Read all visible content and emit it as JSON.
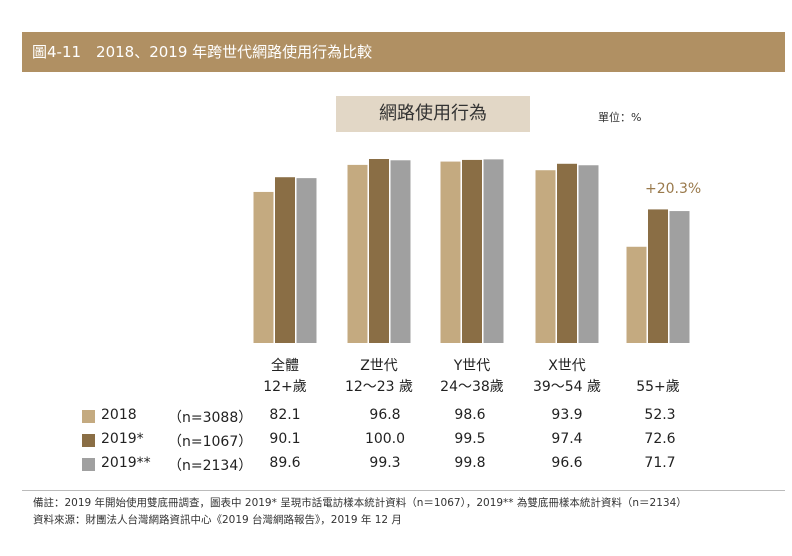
{
  "header": {
    "title": "圖4-11　2018、2019 年跨世代網路使用行為比較"
  },
  "chart_data": {
    "type": "bar",
    "title": "網路使用行為",
    "unit": "單位：%",
    "categories": [
      [
        "全體",
        "12+歲"
      ],
      [
        "Z世代",
        "12～23 歲"
      ],
      [
        "Y世代",
        "24～38歲"
      ],
      [
        "X世代",
        "39～54 歲"
      ],
      [
        "",
        "55+歲"
      ]
    ],
    "series": [
      {
        "name": "2018",
        "n": "（n=3088）",
        "color": "#c4aa80",
        "values": [
          82.1,
          96.8,
          98.6,
          93.9,
          52.3
        ]
      },
      {
        "name": "2019*",
        "n": "（n=1067）",
        "color": "#8a6e45",
        "values": [
          90.1,
          100.0,
          99.5,
          97.4,
          72.6
        ]
      },
      {
        "name": "2019**",
        "n": "（n=2134）",
        "color": "#a0a0a0",
        "values": [
          89.6,
          99.3,
          99.8,
          96.6,
          71.7
        ]
      }
    ],
    "ylim": [
      0,
      100
    ],
    "annotation": "+20.3%"
  },
  "notes": {
    "remark": "備註：2019 年開始使用雙底冊調查，圖表中 2019* 呈現市話電訪樣本統計資料（n＝1067），2019** 為雙底冊樣本統計資料（n＝2134）",
    "source": "資料來源：財團法人台灣網路資訊中心《2019 台灣網路報告》，2019 年 12 月"
  }
}
